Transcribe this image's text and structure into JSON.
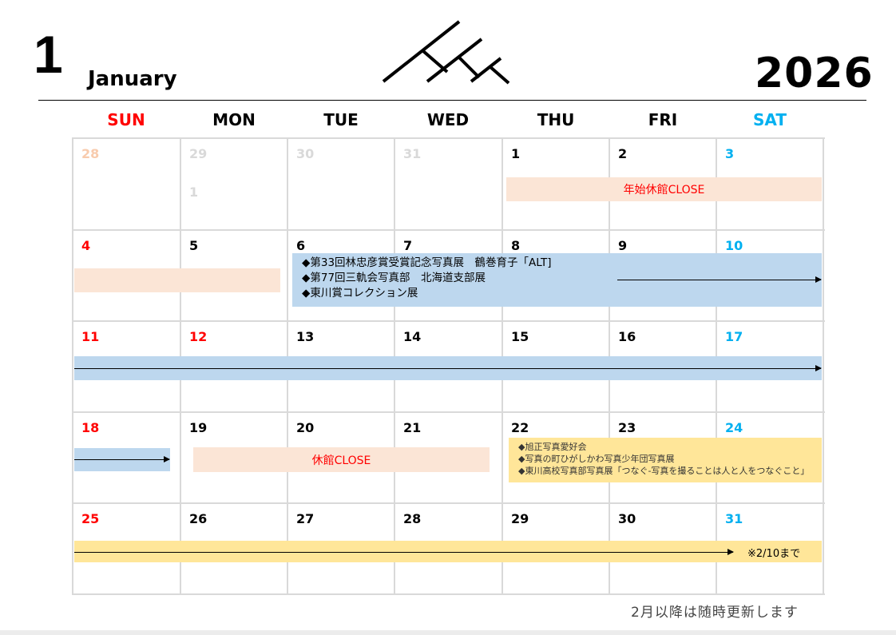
{
  "header": {
    "month_number": "1",
    "month_name": "January",
    "year": "2026",
    "logo": "mountain-lines-logo"
  },
  "weekdays": [
    "SUN",
    "MON",
    "TUE",
    "WED",
    "THU",
    "FRI",
    "SAT"
  ],
  "colors": {
    "sunday": "#ff0000",
    "saturday": "#00b0f0",
    "other_month": "#d9d9d9",
    "close_bar": "#fbe5d6",
    "exhibit_bar": "#bdd7ee",
    "yellow_bar": "#ffe699"
  },
  "weeks": [
    [
      "28",
      "29",
      "30",
      "31",
      "1",
      "2",
      "3"
    ],
    [
      "4",
      "5",
      "6",
      "7",
      "8",
      "9",
      "10"
    ],
    [
      "11",
      "12",
      "13",
      "14",
      "15",
      "16",
      "17"
    ],
    [
      "18",
      "19",
      "20",
      "21",
      "22",
      "23",
      "24"
    ],
    [
      "25",
      "26",
      "27",
      "28",
      "29",
      "30",
      "31"
    ]
  ],
  "extra_mark": "1",
  "events": {
    "newyear_close": "年始休館CLOSE",
    "exhibits": [
      "◆第33回林忠彦賞受賞記念写真展　鶴巻育子「ALT]",
      "◆第77回三軌会写真部　北海道支部展",
      "◆東川賞コレクション展"
    ],
    "close": "休館CLOSE",
    "yellow": [
      "◆旭正写真愛好会",
      "◆写真の町ひがしかわ写真少年団写真展",
      "◆東川高校写真部写真展「つなぐ-写真を撮ることは人と人をつなぐこと」"
    ],
    "until": "※2/10まで"
  },
  "footer_note": "2月以降は随時更新します"
}
